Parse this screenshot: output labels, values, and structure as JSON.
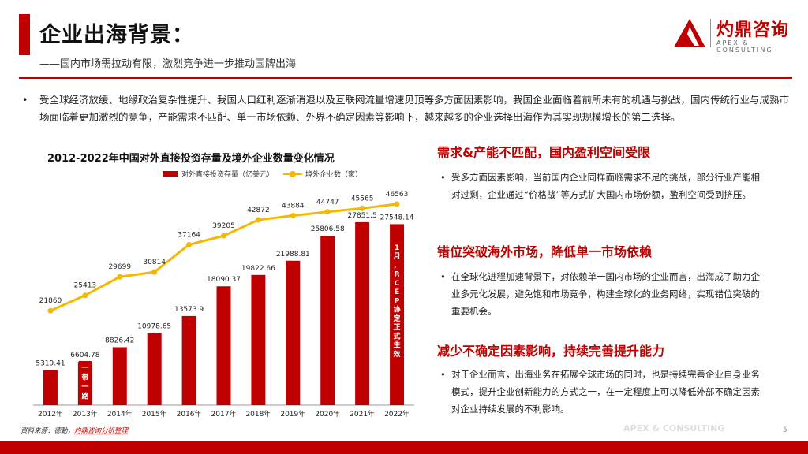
{
  "header": {
    "title": "企业出海背景：",
    "subtitle": "——国内市场需拉动有限，激烈竞争进一步推动国牌出海"
  },
  "logo": {
    "name": "灼鼎咨询",
    "tagline": "APEX & CONSULTING"
  },
  "intro": {
    "bullet": "•",
    "text": "受全球经济放缓、地缘政治复杂性提升、我国人口红利逐渐消退以及互联网流量增速见顶等多方面因素影响，我国企业面临着前所未有的机遇与挑战，国内传统行业与成熟市场面临着更加激烈的竞争，产能需求不匹配、单一市场依赖、外界不确定因素等影响下，越来越多的企业选择出海作为其实现规模增长的第二选择。"
  },
  "chart_data": {
    "type": "bar",
    "title": "2012-2022年中国对外直接投资存量及境外企业数量变化情况",
    "categories": [
      "2012年",
      "2013年",
      "2014年",
      "2015年",
      "2016年",
      "2017年",
      "2018年",
      "2019年",
      "2020年",
      "2021年",
      "2022年"
    ],
    "series": [
      {
        "name": "对外直接投资存量（亿美元）",
        "type": "bar",
        "color": "#c00000",
        "values": [
          5319.41,
          6604.78,
          8826.42,
          10978.65,
          13573.9,
          18090.37,
          19822.66,
          21988.81,
          25806.58,
          27851.5,
          27548.14
        ],
        "labels": [
          "5319.41",
          "6604.78",
          "8826.42",
          "10978.65",
          "13573.9",
          "18090.37",
          "19822.66",
          "21988.81",
          "25806.58",
          "27851.5",
          "27548.14"
        ]
      },
      {
        "name": "境外企业数（家）",
        "type": "line",
        "color": "#f4b800",
        "values": [
          21860,
          25413,
          29699,
          30814,
          37164,
          39205,
          42872,
          43884,
          44747,
          45565,
          46563
        ],
        "labels": [
          "21860",
          "25413",
          "29699",
          "30814",
          "37164",
          "39205",
          "42872",
          "43884",
          "44747",
          "45565",
          "46563"
        ]
      }
    ],
    "annotations": [
      {
        "text": "一带一路",
        "category": "2013年"
      },
      {
        "text": "1月，RCEP协定正式生效",
        "category": "2022年"
      }
    ],
    "ylim_bar": [
      0,
      30000
    ],
    "ylim_line": [
      0,
      50000
    ],
    "grid": false,
    "legend": "top"
  },
  "sections": [
    {
      "title": "需求&产能不匹配，国内盈利空间受限",
      "bullet": "•",
      "text": "受多方面因素影响，当前国内企业同样面临需求不足的挑战，部分行业产能相对过剩，企业通过“价格战”等方式扩大国内市场份额，盈利空间受到挤压。"
    },
    {
      "title": "错位突破海外市场，降低单一市场依赖",
      "bullet": "•",
      "text": "在全球化进程加速背景下，对依赖单一国内市场的企业而言，出海成了助力企业多元化发展，避免饱和市场竞争，构建全球化的业务网络，实现错位突破的重要机会。"
    },
    {
      "title": "减少不确定因素影响，持续完善提升能力",
      "bullet": "•",
      "text": "对于企业而言，出海业务在拓展全球市场的同时，也是持续完善企业自身业务模式，提升企业创新能力的方式之一，在一定程度上可以降低外部不确定因素对企业持续发展的不利影响。"
    }
  ],
  "footer": {
    "source_label": "资料来源：德勤，",
    "source_highlight": "灼鼎咨询分析整理",
    "brand": "APEX & CONSULTING",
    "page": "5"
  },
  "colors": {
    "accent": "#c00000",
    "line": "#f4b800"
  }
}
